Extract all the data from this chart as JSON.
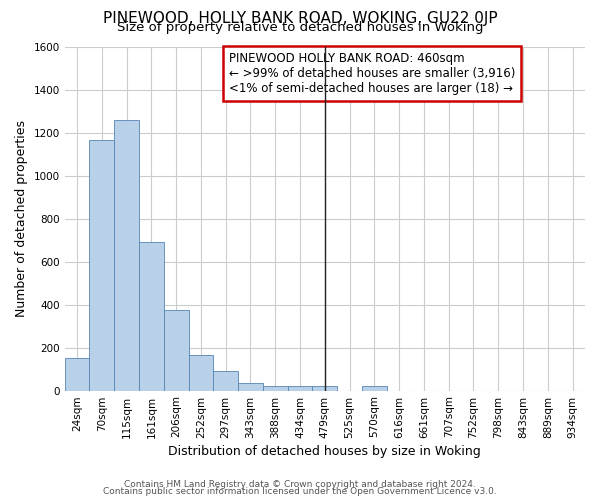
{
  "title": "PINEWOOD, HOLLY BANK ROAD, WOKING, GU22 0JP",
  "subtitle": "Size of property relative to detached houses in Woking",
  "xlabel": "Distribution of detached houses by size in Woking",
  "ylabel": "Number of detached properties",
  "categories": [
    "24sqm",
    "70sqm",
    "115sqm",
    "161sqm",
    "206sqm",
    "252sqm",
    "297sqm",
    "343sqm",
    "388sqm",
    "434sqm",
    "479sqm",
    "525sqm",
    "570sqm",
    "616sqm",
    "661sqm",
    "707sqm",
    "752sqm",
    "798sqm",
    "843sqm",
    "889sqm",
    "934sqm"
  ],
  "values": [
    150,
    1165,
    1260,
    690,
    375,
    165,
    90,
    37,
    22,
    22,
    22,
    0,
    20,
    0,
    0,
    0,
    0,
    0,
    0,
    0,
    0
  ],
  "bar_color": "#b8d0e8",
  "bar_edge_color": "#5585b5",
  "fig_background_color": "#ffffff",
  "plot_background_color": "#ffffff",
  "grid_color": "#cccccc",
  "vline_x_index": 10,
  "vline_color": "#222222",
  "box_text_line1": "PINEWOOD HOLLY BANK ROAD: 460sqm",
  "box_text_line2": "← >99% of detached houses are smaller (3,916)",
  "box_text_line3": "<1% of semi-detached houses are larger (18) →",
  "box_color": "#ffffff",
  "box_edge_color": "#cc0000",
  "ylim": [
    0,
    1600
  ],
  "yticks": [
    0,
    200,
    400,
    600,
    800,
    1000,
    1200,
    1400,
    1600
  ],
  "footer_line1": "Contains HM Land Registry data © Crown copyright and database right 2024.",
  "footer_line2": "Contains public sector information licensed under the Open Government Licence v3.0.",
  "title_fontsize": 11,
  "subtitle_fontsize": 9.5,
  "axis_label_fontsize": 9,
  "tick_fontsize": 7.5,
  "annotation_fontsize": 8.5
}
